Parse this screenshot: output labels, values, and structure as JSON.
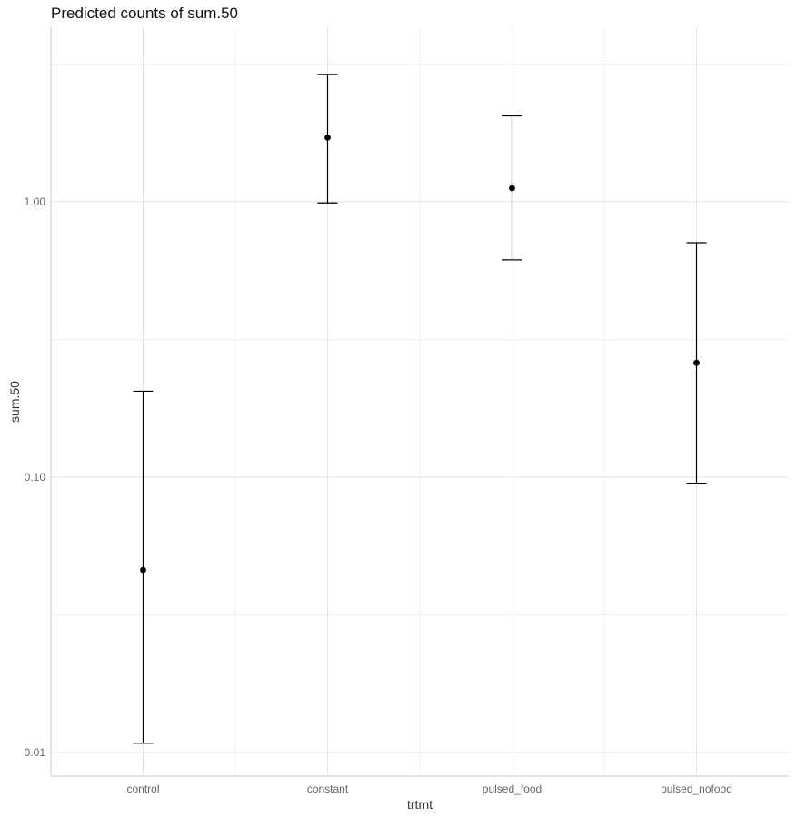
{
  "chart_data": {
    "type": "scatter",
    "title": "Predicted counts of sum.50",
    "xlabel": "trtmt",
    "ylabel": "sum.50",
    "y_scale": "log10",
    "ylim": [
      0.0082,
      4.3
    ],
    "y_ticks": [
      {
        "value": 0.01,
        "label": "0.01"
      },
      {
        "value": 0.1,
        "label": "0.10"
      },
      {
        "value": 1,
        "label": "1.00"
      }
    ],
    "categories": [
      "control",
      "constant",
      "pulsed_food",
      "pulsed_nofood"
    ],
    "series": [
      {
        "points": [
          {
            "x": "control",
            "y": 0.046,
            "lower": 0.0108,
            "upper": 0.205
          },
          {
            "x": "constant",
            "y": 1.71,
            "lower": 0.99,
            "upper": 2.9
          },
          {
            "x": "pulsed_food",
            "y": 1.12,
            "lower": 0.615,
            "upper": 2.05
          },
          {
            "x": "pulsed_nofood",
            "y": 0.26,
            "lower": 0.095,
            "upper": 0.71
          }
        ]
      }
    ],
    "grid": true,
    "legend": "none"
  }
}
